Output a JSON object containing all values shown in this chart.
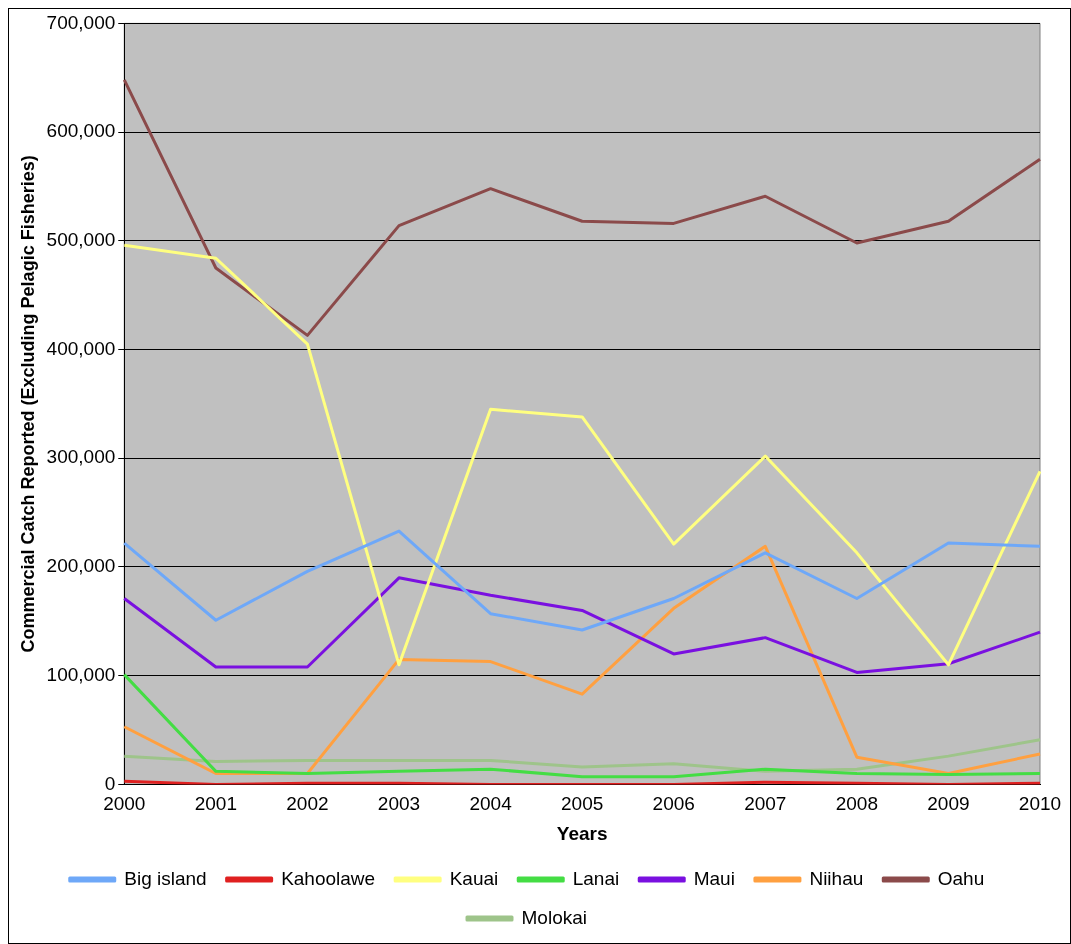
{
  "chart_data": {
    "type": "line",
    "xlabel": "Years",
    "ylabel": "Commercial Catch Reported (Excluding Pelagic Fisheries)",
    "categories": [
      "2000",
      "2001",
      "2002",
      "2003",
      "2004",
      "2005",
      "2006",
      "2007",
      "2008",
      "2009",
      "2010"
    ],
    "series": [
      {
        "name": "Big island",
        "color": "#6ea8f8",
        "values": [
          222000,
          151000,
          196000,
          233000,
          157000,
          142000,
          171000,
          213000,
          171000,
          222000,
          219000
        ]
      },
      {
        "name": "Kahoolawe",
        "color": "#e02020",
        "values": [
          3000,
          0,
          1000,
          1000,
          0,
          0,
          0,
          2000,
          1000,
          0,
          1000
        ]
      },
      {
        "name": "Kauai",
        "color": "#ffff80",
        "values": [
          496000,
          484000,
          405000,
          110000,
          345000,
          338000,
          221000,
          302000,
          213000,
          110000,
          288000
        ]
      },
      {
        "name": "Lanai",
        "color": "#44dd44",
        "values": [
          101000,
          12000,
          10000,
          12000,
          14000,
          7000,
          7000,
          14000,
          10000,
          9000,
          10000
        ]
      },
      {
        "name": "Maui",
        "color": "#7a10e0",
        "values": [
          171000,
          108000,
          108000,
          190000,
          174000,
          160000,
          120000,
          135000,
          103000,
          111000,
          140000
        ]
      },
      {
        "name": "Niihau",
        "color": "#ffa040",
        "values": [
          53000,
          10000,
          10000,
          115000,
          113000,
          83000,
          162000,
          219000,
          25000,
          10000,
          28000
        ]
      },
      {
        "name": "Oahu",
        "color": "#8b4a4a",
        "values": [
          648000,
          475000,
          413000,
          514000,
          548000,
          518000,
          516000,
          541000,
          498000,
          518000,
          575000
        ]
      },
      {
        "name": "Molokai",
        "color": "#9ec48a",
        "values": [
          26000,
          21000,
          22000,
          22000,
          22000,
          16000,
          19000,
          12000,
          14000,
          26000,
          41000
        ]
      }
    ],
    "ylim": [
      0,
      700000
    ],
    "yticks": [
      {
        "value": 0,
        "label": "0"
      },
      {
        "value": 100000,
        "label": "100,000"
      },
      {
        "value": 200000,
        "label": "200,000"
      },
      {
        "value": 300000,
        "label": "300,000"
      },
      {
        "value": 400000,
        "label": "400,000"
      },
      {
        "value": 500000,
        "label": "500,000"
      },
      {
        "value": 600000,
        "label": "600,000"
      },
      {
        "value": 700000,
        "label": "700,000"
      }
    ],
    "grid": "y",
    "legend": "bottom",
    "marker": "none",
    "line_style": "solid"
  }
}
